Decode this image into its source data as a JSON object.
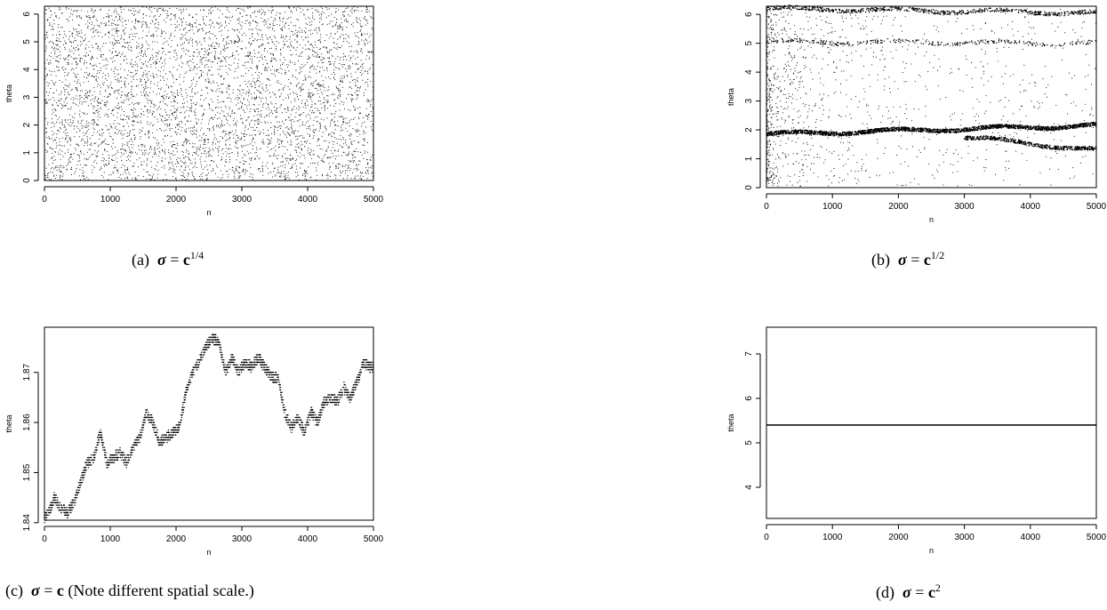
{
  "chart_data": [
    {
      "id": "a",
      "type": "scatter",
      "xlabel": "n",
      "ylabel": "theta",
      "xlim": [
        0,
        5000
      ],
      "ylim": [
        0,
        6.283
      ],
      "xticks": [
        0,
        1000,
        2000,
        3000,
        4000,
        5000
      ],
      "yticks": [
        0,
        1,
        2,
        3,
        4,
        5,
        6
      ],
      "n_points": 5000,
      "pattern": "uniform",
      "caption": {
        "tag": "(a)",
        "symbol": "σ",
        "eq": " = ",
        "base": "c",
        "exp": "1/4",
        "note": ""
      }
    },
    {
      "id": "b",
      "type": "scatter",
      "xlabel": "n",
      "ylabel": "theta",
      "xlim": [
        0,
        5000
      ],
      "ylim": [
        0,
        6.283
      ],
      "xticks": [
        0,
        1000,
        2000,
        3000,
        4000,
        5000
      ],
      "yticks": [
        0,
        1,
        2,
        3,
        4,
        5,
        6
      ],
      "n_points": 5000,
      "pattern": "clustered",
      "clusters": [
        {
          "x": [
            0,
            5000
          ],
          "y": [
            1.85,
            2.15
          ],
          "weight": 0.42
        },
        {
          "x": [
            3000,
            5000
          ],
          "y": [
            1.75,
            1.3
          ],
          "weight": 0.1
        },
        {
          "x": [
            0,
            5000
          ],
          "y": [
            6.2,
            6.05
          ],
          "weight": 0.14
        },
        {
          "x": [
            0,
            5000
          ],
          "y": [
            5.05,
            5.0
          ],
          "weight": 0.06
        }
      ],
      "caption": {
        "tag": "(b)",
        "symbol": "σ",
        "eq": " = ",
        "base": "c",
        "exp": "1/2",
        "note": ""
      }
    },
    {
      "id": "c",
      "type": "scatter",
      "xlabel": "n",
      "ylabel": "theta",
      "xlim": [
        0,
        5000
      ],
      "ylim": [
        1.8405,
        1.879
      ],
      "xticks": [
        0,
        1000,
        2000,
        3000,
        4000,
        5000
      ],
      "yticks": [
        1.84,
        1.85,
        1.86,
        1.87
      ],
      "n_points": 2500,
      "pattern": "walk",
      "path": [
        [
          0,
          1.841
        ],
        [
          100,
          1.843
        ],
        [
          150,
          1.845
        ],
        [
          250,
          1.843
        ],
        [
          350,
          1.842
        ],
        [
          450,
          1.844
        ],
        [
          550,
          1.848
        ],
        [
          650,
          1.852
        ],
        [
          750,
          1.853
        ],
        [
          850,
          1.858
        ],
        [
          950,
          1.852
        ],
        [
          1050,
          1.853
        ],
        [
          1150,
          1.854
        ],
        [
          1250,
          1.852
        ],
        [
          1350,
          1.855
        ],
        [
          1450,
          1.857
        ],
        [
          1550,
          1.862
        ],
        [
          1650,
          1.86
        ],
        [
          1750,
          1.856
        ],
        [
          1850,
          1.857
        ],
        [
          1950,
          1.858
        ],
        [
          2050,
          1.859
        ],
        [
          2150,
          1.866
        ],
        [
          2250,
          1.87
        ],
        [
          2350,
          1.872
        ],
        [
          2450,
          1.875
        ],
        [
          2550,
          1.877
        ],
        [
          2650,
          1.876
        ],
        [
          2750,
          1.87
        ],
        [
          2850,
          1.873
        ],
        [
          2950,
          1.87
        ],
        [
          3050,
          1.872
        ],
        [
          3150,
          1.871
        ],
        [
          3250,
          1.873
        ],
        [
          3350,
          1.871
        ],
        [
          3450,
          1.869
        ],
        [
          3550,
          1.869
        ],
        [
          3650,
          1.862
        ],
        [
          3750,
          1.859
        ],
        [
          3850,
          1.861
        ],
        [
          3950,
          1.858
        ],
        [
          4050,
          1.862
        ],
        [
          4150,
          1.86
        ],
        [
          4250,
          1.864
        ],
        [
          4350,
          1.865
        ],
        [
          4450,
          1.864
        ],
        [
          4550,
          1.867
        ],
        [
          4650,
          1.865
        ],
        [
          4750,
          1.868
        ],
        [
          4850,
          1.872
        ],
        [
          4950,
          1.871
        ],
        [
          5000,
          1.871
        ]
      ],
      "caption": {
        "tag": "(c)",
        "symbol": "σ",
        "eq": " = ",
        "base": "c",
        "exp": "",
        "note": " (Note different spatial scale.)"
      }
    },
    {
      "id": "d",
      "type": "line",
      "xlabel": "n",
      "ylabel": "theta",
      "xlim": [
        0,
        5000
      ],
      "ylim": [
        3.3,
        7.6
      ],
      "xticks": [
        0,
        1000,
        2000,
        3000,
        4000,
        5000
      ],
      "yticks": [
        4,
        5,
        6,
        7
      ],
      "x": [
        0,
        5000
      ],
      "y": [
        5.4,
        5.4
      ],
      "caption": {
        "tag": "(d)",
        "symbol": "σ",
        "eq": " = ",
        "base": "c",
        "exp": "2",
        "note": ""
      }
    }
  ]
}
